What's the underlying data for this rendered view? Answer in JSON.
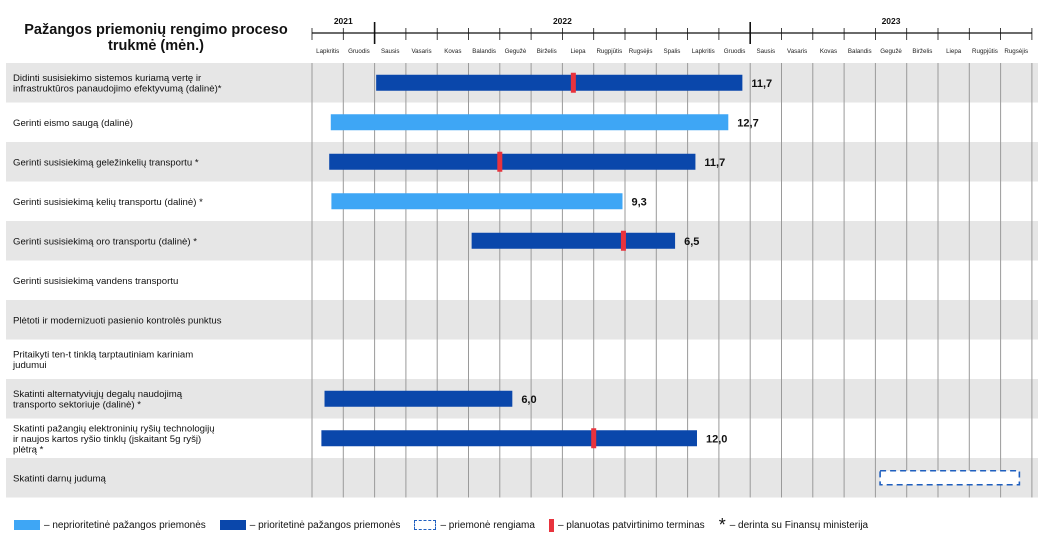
{
  "title": "Pažangos priemonių rengimo proceso trukmė (mėn.)",
  "colors": {
    "non_priority": "#3ea6f5",
    "priority": "#0a47ab",
    "deadline": "#e8333d",
    "planned_border": "#1f5fbf",
    "band": "#e6e6e6",
    "grid": "#9a9a9a"
  },
  "chart_data": {
    "type": "gantt",
    "years": [
      "2021",
      "2022",
      "2023"
    ],
    "months": [
      "Lapkritis",
      "Gruodis",
      "Sausis",
      "Vasaris",
      "Kovas",
      "Balandis",
      "Gegužė",
      "Birželis",
      "Liepa",
      "Rugpjūtis",
      "Rugsėjis",
      "Spalis",
      "Lapkritis",
      "Gruodis",
      "Sausis",
      "Vasaris",
      "Kovas",
      "Balandis",
      "Gegužė",
      "Birželis",
      "Liepa",
      "Rugpjūtis",
      "Rugsėjis"
    ],
    "tasks": [
      {
        "label": "Didinti susisiekimo sistemos kuriamą vertę ir infrastruktūros panaudojimo efektyvumą (dalinė)*",
        "kind": "priority",
        "start": 2.05,
        "end": 13.75,
        "value": "11,7",
        "deadline": 8.35
      },
      {
        "label": "Gerinti eismo saugą (dalinė)",
        "kind": "non_priority",
        "start": 0.6,
        "end": 13.3,
        "value": "12,7",
        "deadline": null
      },
      {
        "label": "Gerinti susisiekimą geležinkelių transportu *",
        "kind": "priority",
        "start": 0.55,
        "end": 12.25,
        "value": "11,7",
        "deadline": 6.0
      },
      {
        "label": "Gerinti susisiekimą kelių transportu (dalinė) *",
        "kind": "non_priority",
        "start": 0.62,
        "end": 9.92,
        "value": "9,3",
        "deadline": null
      },
      {
        "label": "Gerinti susisiekimą oro transportu (dalinė) *",
        "kind": "priority",
        "start": 5.1,
        "end": 11.6,
        "value": "6,5",
        "deadline": 9.95
      },
      {
        "label": "Gerinti susisiekimą vandens transportu",
        "kind": "none",
        "start": null,
        "end": null,
        "value": "",
        "deadline": null
      },
      {
        "label": "Plėtoti ir modernizuoti pasienio kontrolės punktus",
        "kind": "none",
        "start": null,
        "end": null,
        "value": "",
        "deadline": null
      },
      {
        "label": "Pritaikyti ten-t tinklą tarptautiniam kariniam judumui",
        "kind": "none",
        "start": null,
        "end": null,
        "value": "",
        "deadline": null
      },
      {
        "label": "Skatinti alternatyviųjų degalų naudojimą transporto sektoriuje (dalinė) *",
        "kind": "priority",
        "start": 0.4,
        "end": 6.4,
        "value": "6,0",
        "deadline": null
      },
      {
        "label": "Skatinti pažangių elektroninių ryšių technologijų ir naujos kartos ryšio tinklų (įskaitant 5g ryšį) plėtrą *",
        "kind": "priority",
        "start": 0.3,
        "end": 12.3,
        "value": "12,0",
        "deadline": 9.0
      },
      {
        "label": "Skatinti darnų judumą",
        "kind": "planned",
        "start": 18.15,
        "end": 22.6,
        "value": "",
        "deadline": null
      }
    ]
  },
  "legend": {
    "non_priority": "– neprioritetinė pažangos priemonės",
    "priority": "– prioritetinė pažangos priemonės",
    "planned": "– priemonė rengiama",
    "deadline": "– planuotas patvirtinimo terminas",
    "star_symbol": "*",
    "star": "– derinta su Finansų ministerija"
  }
}
